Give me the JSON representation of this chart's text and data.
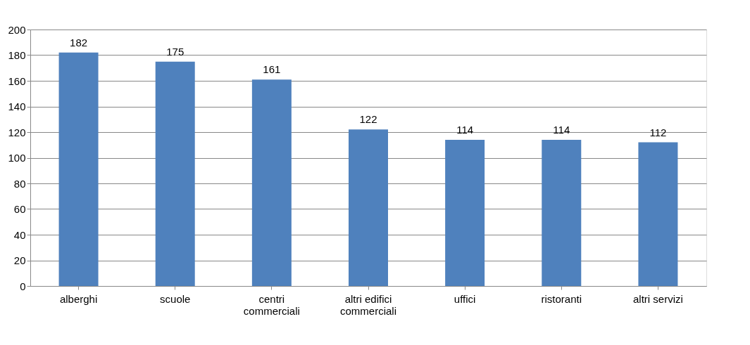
{
  "chart_data": {
    "type": "bar",
    "categories": [
      "alberghi",
      "scuole",
      "centri commerciali",
      "altri edifici commerciali",
      "uffici",
      "ristoranti",
      "altri servizi"
    ],
    "values": [
      182,
      175,
      161,
      122,
      114,
      114,
      112
    ],
    "color": "#4f81bd",
    "ylim": [
      0,
      200
    ],
    "yticks": [
      0,
      20,
      40,
      60,
      80,
      100,
      120,
      140,
      160,
      180,
      200
    ],
    "grid": "y",
    "data_labels": true
  }
}
